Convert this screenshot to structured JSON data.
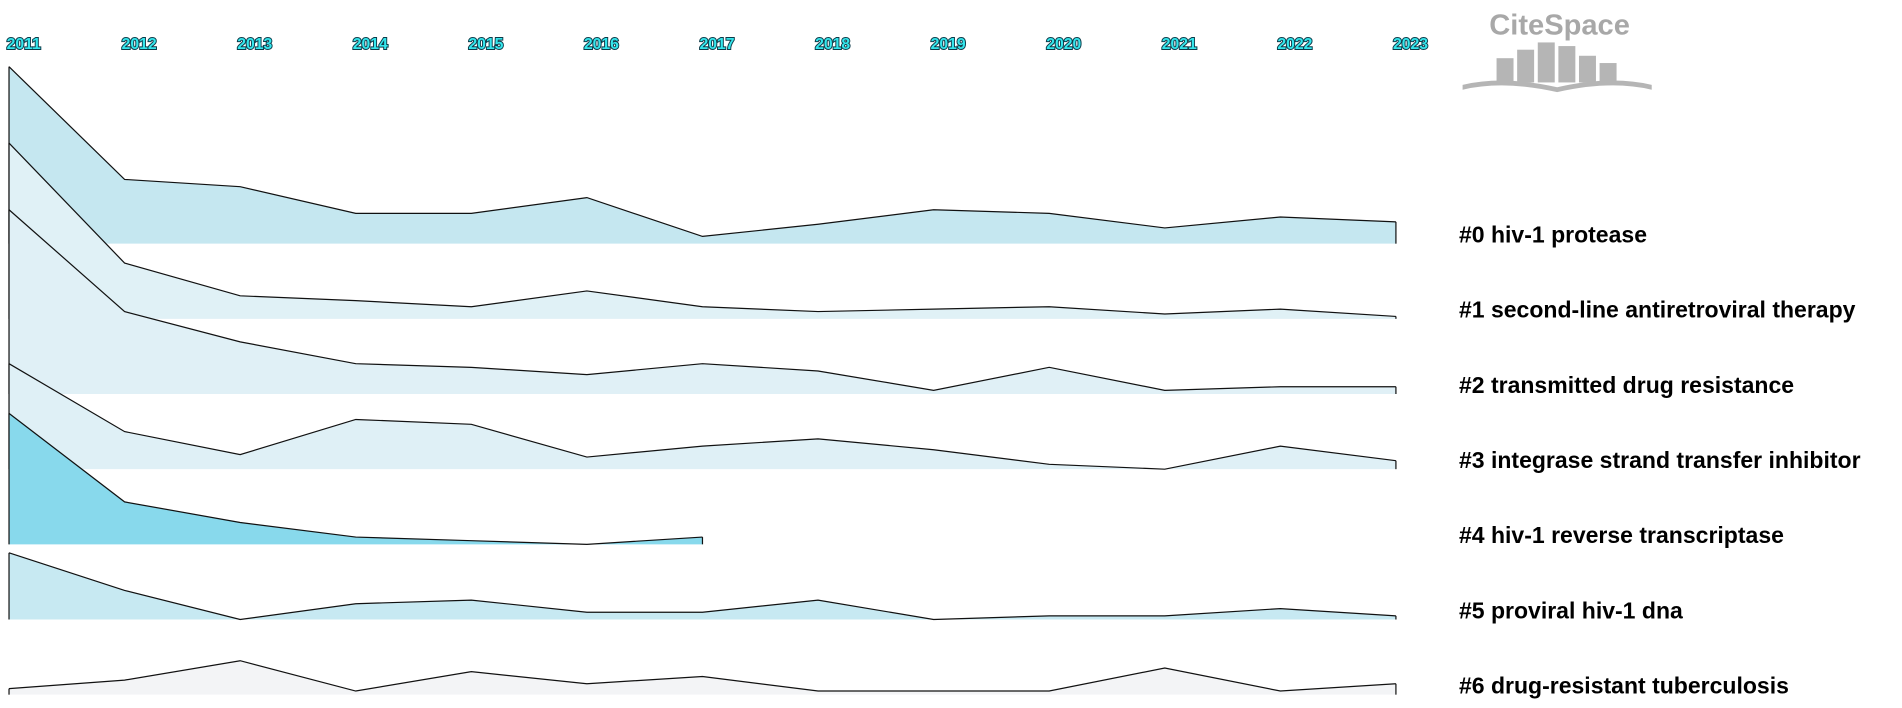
{
  "chart_data": {
    "type": "timeline-area",
    "logo": "CiteSpace",
    "x": [
      2011,
      2012,
      2013,
      2014,
      2015,
      2016,
      2017,
      2018,
      2019,
      2020,
      2021,
      2022,
      2023
    ],
    "xlim": [
      2011,
      2023
    ],
    "xticks": [
      2011,
      2012,
      2013,
      2014,
      2015,
      2016,
      2017,
      2018,
      2019,
      2020,
      2021,
      2022,
      2023
    ],
    "series": [
      {
        "name": "#0 hiv-1 protease",
        "color": "#c5e7f0",
        "values": [
          146,
          53,
          47,
          25,
          25,
          38,
          6,
          16,
          28,
          25,
          13,
          22,
          18
        ]
      },
      {
        "name": "#1 second-line antiretroviral therapy",
        "color": "#e0f1f6",
        "values": [
          145,
          46,
          19,
          15,
          10,
          23,
          10,
          6,
          8,
          10,
          4,
          8,
          2
        ]
      },
      {
        "name": "#2 transmitted drug resistance",
        "color": "#e0f0f6",
        "values": [
          152,
          68,
          43,
          25,
          22,
          16,
          25,
          19,
          3,
          22,
          3,
          6,
          6
        ]
      },
      {
        "name": "#3 integrase strand transfer inhibitor",
        "color": "#dff0f6",
        "values": [
          87,
          31,
          12,
          41,
          37,
          10,
          19,
          25,
          16,
          4,
          0,
          19,
          7
        ]
      },
      {
        "name": "#4 hiv-1 reverse transcriptase",
        "color": "#88d9ec",
        "values": [
          108,
          35,
          18,
          6,
          3,
          0,
          6,
          null,
          null,
          null,
          null,
          null,
          null
        ]
      },
      {
        "name": "#5 proviral hiv-1 dna",
        "color": "#c7e9f2",
        "values": [
          55,
          24,
          0,
          13,
          16,
          6,
          6,
          16,
          0,
          3,
          3,
          9,
          3
        ]
      },
      {
        "name": "#6 drug-resistant tuberculosis",
        "color": "#f3f4f6",
        "values": [
          5,
          12,
          28,
          3,
          19,
          9,
          15,
          3,
          3,
          3,
          22,
          3,
          9
        ]
      }
    ]
  }
}
